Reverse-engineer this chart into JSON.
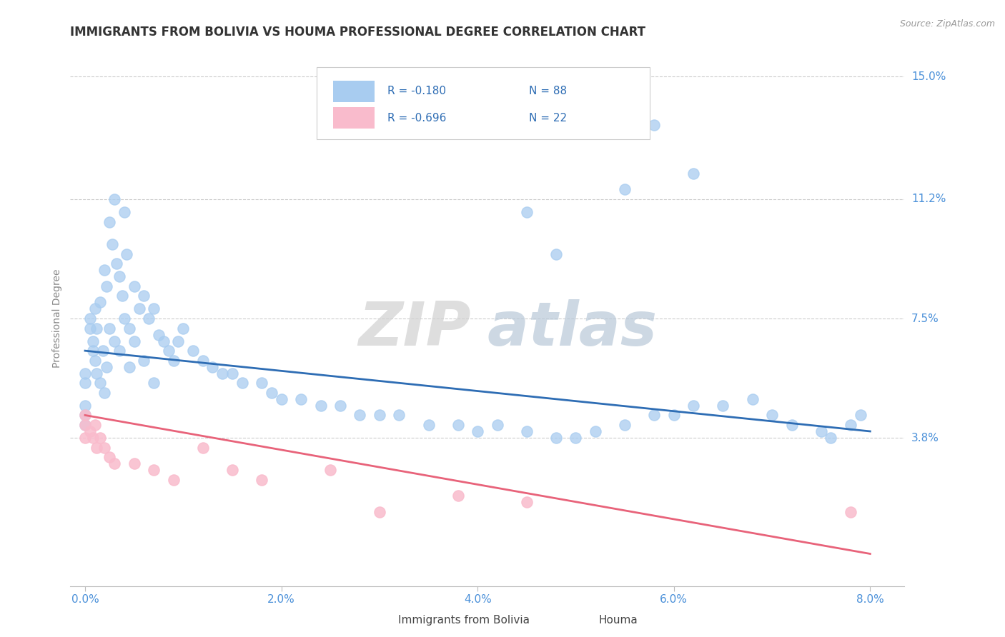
{
  "title": "IMMIGRANTS FROM BOLIVIA VS HOUMA PROFESSIONAL DEGREE CORRELATION CHART",
  "source_text": "Source: ZipAtlas.com",
  "ylabel": "Professional Degree",
  "xlim": [
    0.0,
    8.0
  ],
  "ylim": [
    0.0,
    15.0
  ],
  "yticks": [
    3.8,
    7.5,
    11.2,
    15.0
  ],
  "ytick_labels": [
    "3.8%",
    "7.5%",
    "11.2%",
    "15.0%"
  ],
  "xticks": [
    0.0,
    2.0,
    4.0,
    6.0,
    8.0
  ],
  "xtick_labels": [
    "0.0%",
    "2.0%",
    "4.0%",
    "6.0%",
    "8.0%"
  ],
  "blue_x": [
    0.0,
    0.0,
    0.0,
    0.0,
    0.0,
    0.05,
    0.05,
    0.08,
    0.08,
    0.1,
    0.1,
    0.12,
    0.12,
    0.15,
    0.15,
    0.18,
    0.2,
    0.2,
    0.22,
    0.22,
    0.25,
    0.25,
    0.28,
    0.3,
    0.3,
    0.32,
    0.35,
    0.35,
    0.38,
    0.4,
    0.4,
    0.42,
    0.45,
    0.45,
    0.5,
    0.5,
    0.55,
    0.6,
    0.6,
    0.65,
    0.7,
    0.7,
    0.75,
    0.8,
    0.85,
    0.9,
    0.95,
    1.0,
    1.1,
    1.2,
    1.3,
    1.4,
    1.5,
    1.6,
    1.8,
    1.9,
    2.0,
    2.2,
    2.4,
    2.6,
    2.8,
    3.0,
    3.2,
    3.5,
    3.8,
    4.0,
    4.2,
    4.5,
    4.8,
    5.0,
    5.2,
    5.5,
    5.8,
    6.0,
    6.2,
    6.5,
    6.8,
    7.0,
    7.2,
    7.5,
    7.6,
    7.8,
    7.9,
    4.5,
    4.8,
    5.5,
    5.8,
    6.2
  ],
  "blue_y": [
    5.8,
    5.5,
    4.8,
    4.5,
    4.2,
    7.5,
    7.2,
    6.8,
    6.5,
    7.8,
    6.2,
    7.2,
    5.8,
    8.0,
    5.5,
    6.5,
    9.0,
    5.2,
    8.5,
    6.0,
    10.5,
    7.2,
    9.8,
    11.2,
    6.8,
    9.2,
    8.8,
    6.5,
    8.2,
    10.8,
    7.5,
    9.5,
    7.2,
    6.0,
    8.5,
    6.8,
    7.8,
    8.2,
    6.2,
    7.5,
    7.8,
    5.5,
    7.0,
    6.8,
    6.5,
    6.2,
    6.8,
    7.2,
    6.5,
    6.2,
    6.0,
    5.8,
    5.8,
    5.5,
    5.5,
    5.2,
    5.0,
    5.0,
    4.8,
    4.8,
    4.5,
    4.5,
    4.5,
    4.2,
    4.2,
    4.0,
    4.2,
    4.0,
    3.8,
    3.8,
    4.0,
    4.2,
    4.5,
    4.5,
    4.8,
    4.8,
    5.0,
    4.5,
    4.2,
    4.0,
    3.8,
    4.2,
    4.5,
    10.8,
    9.5,
    11.5,
    13.5,
    12.0
  ],
  "blue_trend_x": [
    0.0,
    8.0
  ],
  "blue_trend_y": [
    6.5,
    4.0
  ],
  "pink_x": [
    0.0,
    0.0,
    0.0,
    0.05,
    0.08,
    0.1,
    0.12,
    0.15,
    0.2,
    0.25,
    0.3,
    0.5,
    0.7,
    0.9,
    1.2,
    1.5,
    1.8,
    2.5,
    3.0,
    3.8,
    4.5,
    7.8
  ],
  "pink_y": [
    4.5,
    4.2,
    3.8,
    4.0,
    3.8,
    4.2,
    3.5,
    3.8,
    3.5,
    3.2,
    3.0,
    3.0,
    2.8,
    2.5,
    3.5,
    2.8,
    2.5,
    2.8,
    1.5,
    2.0,
    1.8,
    1.5
  ],
  "pink_trend_x": [
    0.0,
    8.0
  ],
  "pink_trend_y": [
    4.5,
    0.2
  ],
  "blue_color": "#A8CCF0",
  "blue_line_color": "#2E6DB4",
  "pink_color": "#F9BBCC",
  "pink_line_color": "#E8637A",
  "legend_blue_label_r": "R = -0.180",
  "legend_blue_label_n": "N = 88",
  "legend_pink_label_r": "R = -0.696",
  "legend_pink_label_n": "N = 22",
  "watermark_zip": "ZIP",
  "watermark_atlas": "atlas",
  "background_color": "#FFFFFF",
  "grid_color": "#CCCCCC",
  "title_color": "#333333",
  "axis_label_color": "#888888",
  "tick_label_color": "#4A90D9",
  "source_color": "#999999",
  "title_fontsize": 12,
  "label_fontsize": 10,
  "tick_fontsize": 11
}
